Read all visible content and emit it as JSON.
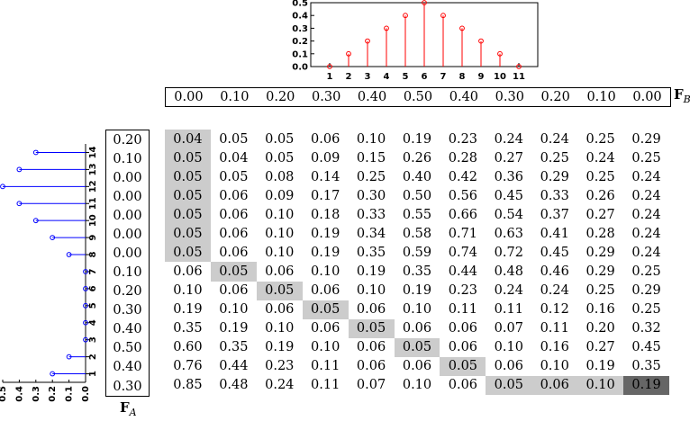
{
  "chart_data": [
    {
      "type": "stem",
      "x": [
        1,
        2,
        3,
        4,
        5,
        6,
        7,
        8,
        9,
        10,
        11
      ],
      "values": [
        0.0,
        0.1,
        0.2,
        0.3,
        0.4,
        0.5,
        0.4,
        0.3,
        0.2,
        0.1,
        0.0
      ],
      "ylim": [
        0,
        0.5
      ],
      "yticks": [
        "0.0",
        "0.1",
        "0.2",
        "0.3",
        "0.4",
        "0.5"
      ],
      "color": "#ff0000"
    },
    {
      "type": "stem",
      "orientation": "horizontal",
      "x": [
        1,
        2,
        3,
        4,
        5,
        6,
        7,
        8,
        9,
        10,
        11,
        12,
        13,
        14
      ],
      "values": [
        0.2,
        0.1,
        0.0,
        0.0,
        0.0,
        0.0,
        0.0,
        0.1,
        0.2,
        0.3,
        0.4,
        0.5,
        0.4,
        0.3
      ],
      "ylim": [
        0,
        0.5
      ],
      "yticks": [
        "0.0",
        "0.1",
        "0.2",
        "0.3",
        "0.4",
        "0.5"
      ],
      "color": "#0000ff"
    }
  ],
  "labels": {
    "fb_main": "F",
    "fb_sub": "B",
    "fa_main": "F",
    "fa_sub": "A"
  },
  "fb_vector": [
    "0.00",
    "0.10",
    "0.20",
    "0.30",
    "0.40",
    "0.50",
    "0.40",
    "0.30",
    "0.20",
    "0.10",
    "0.00"
  ],
  "fa_vector": [
    "0.20",
    "0.10",
    "0.00",
    "0.00",
    "0.00",
    "0.00",
    "0.00",
    "0.10",
    "0.20",
    "0.30",
    "0.40",
    "0.50",
    "0.40",
    "0.30"
  ],
  "matrix": [
    [
      "0.04",
      "0.05",
      "0.05",
      "0.06",
      "0.10",
      "0.19",
      "0.23",
      "0.24",
      "0.24",
      "0.25",
      "0.29"
    ],
    [
      "0.05",
      "0.04",
      "0.05",
      "0.09",
      "0.15",
      "0.26",
      "0.28",
      "0.27",
      "0.25",
      "0.24",
      "0.25"
    ],
    [
      "0.05",
      "0.05",
      "0.08",
      "0.14",
      "0.25",
      "0.40",
      "0.42",
      "0.36",
      "0.29",
      "0.25",
      "0.24"
    ],
    [
      "0.05",
      "0.06",
      "0.09",
      "0.17",
      "0.30",
      "0.50",
      "0.56",
      "0.45",
      "0.33",
      "0.26",
      "0.24"
    ],
    [
      "0.05",
      "0.06",
      "0.10",
      "0.18",
      "0.33",
      "0.55",
      "0.66",
      "0.54",
      "0.37",
      "0.27",
      "0.24"
    ],
    [
      "0.05",
      "0.06",
      "0.10",
      "0.19",
      "0.34",
      "0.58",
      "0.71",
      "0.63",
      "0.41",
      "0.28",
      "0.24"
    ],
    [
      "0.05",
      "0.06",
      "0.10",
      "0.19",
      "0.35",
      "0.59",
      "0.74",
      "0.72",
      "0.45",
      "0.29",
      "0.24"
    ],
    [
      "0.06",
      "0.05",
      "0.06",
      "0.10",
      "0.19",
      "0.35",
      "0.44",
      "0.48",
      "0.46",
      "0.29",
      "0.25"
    ],
    [
      "0.10",
      "0.06",
      "0.05",
      "0.06",
      "0.10",
      "0.19",
      "0.23",
      "0.24",
      "0.24",
      "0.25",
      "0.29"
    ],
    [
      "0.19",
      "0.10",
      "0.06",
      "0.05",
      "0.06",
      "0.10",
      "0.11",
      "0.11",
      "0.12",
      "0.16",
      "0.25"
    ],
    [
      "0.35",
      "0.19",
      "0.10",
      "0.06",
      "0.05",
      "0.06",
      "0.06",
      "0.07",
      "0.11",
      "0.20",
      "0.32"
    ],
    [
      "0.60",
      "0.35",
      "0.19",
      "0.10",
      "0.06",
      "0.05",
      "0.06",
      "0.10",
      "0.16",
      "0.27",
      "0.45"
    ],
    [
      "0.76",
      "0.44",
      "0.23",
      "0.11",
      "0.06",
      "0.06",
      "0.05",
      "0.06",
      "0.10",
      "0.19",
      "0.35"
    ],
    [
      "0.85",
      "0.48",
      "0.24",
      "0.11",
      "0.07",
      "0.10",
      "0.06",
      "0.05",
      "0.06",
      "0.10",
      "0.19"
    ]
  ],
  "path": [
    [
      0,
      0
    ],
    [
      1,
      0
    ],
    [
      2,
      0
    ],
    [
      3,
      0
    ],
    [
      4,
      0
    ],
    [
      5,
      0
    ],
    [
      6,
      0
    ],
    [
      7,
      1
    ],
    [
      8,
      2
    ],
    [
      9,
      3
    ],
    [
      10,
      4
    ],
    [
      11,
      5
    ],
    [
      12,
      6
    ],
    [
      13,
      7
    ],
    [
      13,
      8
    ],
    [
      13,
      9
    ]
  ],
  "end_cell": [
    13,
    10
  ],
  "colors": {
    "path": "#cccccc",
    "end": "#666666",
    "stem_top": "#ff0000",
    "stem_left": "#0000ff"
  }
}
